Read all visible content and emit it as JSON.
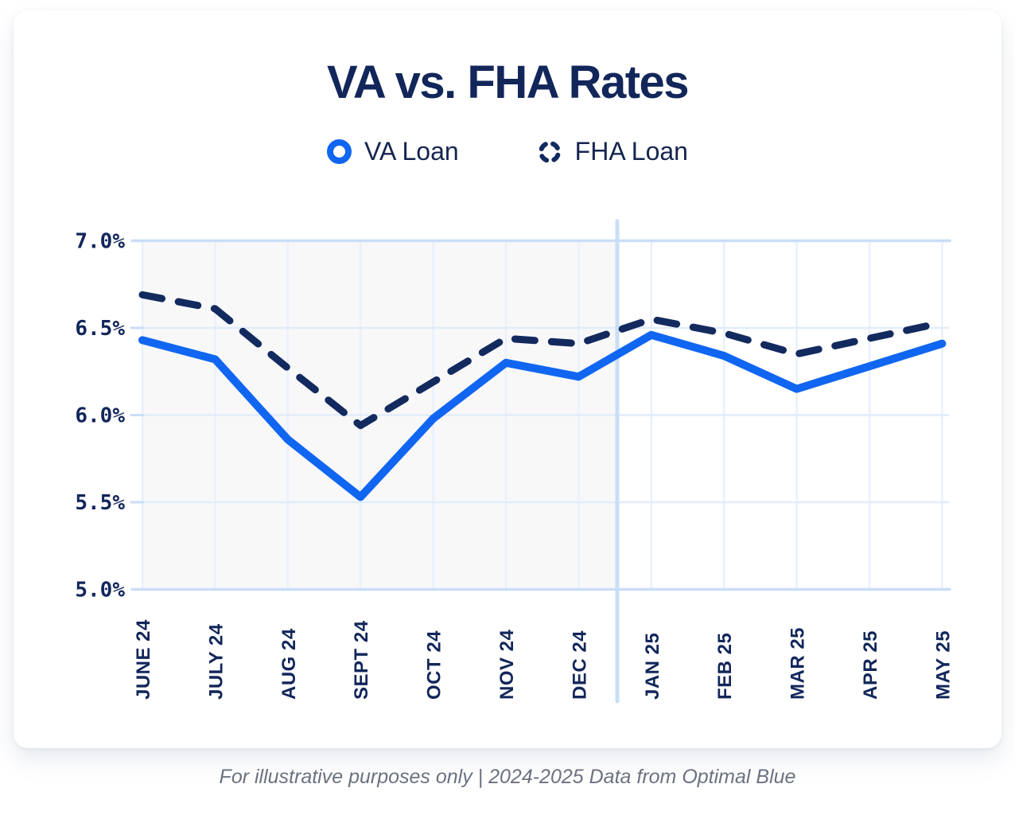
{
  "card": {
    "title": "VA vs. FHA Rates",
    "legend": [
      {
        "label": "VA Loan",
        "icon": "solid-ring-icon"
      },
      {
        "label": "FHA Loan",
        "icon": "dashed-ring-icon"
      }
    ]
  },
  "footer": {
    "text": "For illustrative purposes only | 2024-2025 Data from Optimal Blue"
  },
  "colors": {
    "va_blue": "#1166f1",
    "fha_navy": "#132a5f",
    "text_navy": "#12265a",
    "grid_strong": "#c9def7",
    "grid_light": "#e1ecfb",
    "month_gridline": "#e9f1fd",
    "shaded_region": "#f8f8f9",
    "footer_gray": "#6b7280"
  },
  "chart_data": {
    "type": "line",
    "title": "VA vs. FHA Rates",
    "categories": [
      "JUNE 24",
      "JULY 24",
      "AUG 24",
      "SEPT 24",
      "OCT 24",
      "NOV 24",
      "DEC 24",
      "JAN 25",
      "FEB 25",
      "MAR 25",
      "APR 25",
      "MAY 25"
    ],
    "series": [
      {
        "name": "VA Loan",
        "line_style": "solid",
        "color": "#1166f1",
        "values": [
          6.43,
          6.32,
          5.86,
          5.53,
          5.98,
          6.3,
          6.22,
          6.46,
          6.34,
          6.15,
          6.28,
          6.41
        ]
      },
      {
        "name": "FHA Loan",
        "line_style": "dashed",
        "color": "#132a5f",
        "values": [
          6.69,
          6.61,
          6.27,
          5.94,
          6.19,
          6.44,
          6.41,
          6.55,
          6.47,
          6.35,
          6.44,
          6.53
        ]
      }
    ],
    "ylim": [
      5.0,
      7.0
    ],
    "yticks": [
      {
        "value": 5.0,
        "label": "5.0%"
      },
      {
        "value": 5.5,
        "label": "5.5%"
      },
      {
        "value": 6.0,
        "label": "6.0%"
      },
      {
        "value": 6.5,
        "label": "6.5%"
      },
      {
        "value": 7.0,
        "label": "7.0%"
      }
    ],
    "xlabel": "",
    "ylabel": "",
    "grid": true,
    "legend_position": "top",
    "shaded_period": {
      "from": "JUNE 24",
      "to": "DEC 24"
    },
    "divider_between": [
      "DEC 24",
      "JAN 25"
    ]
  }
}
